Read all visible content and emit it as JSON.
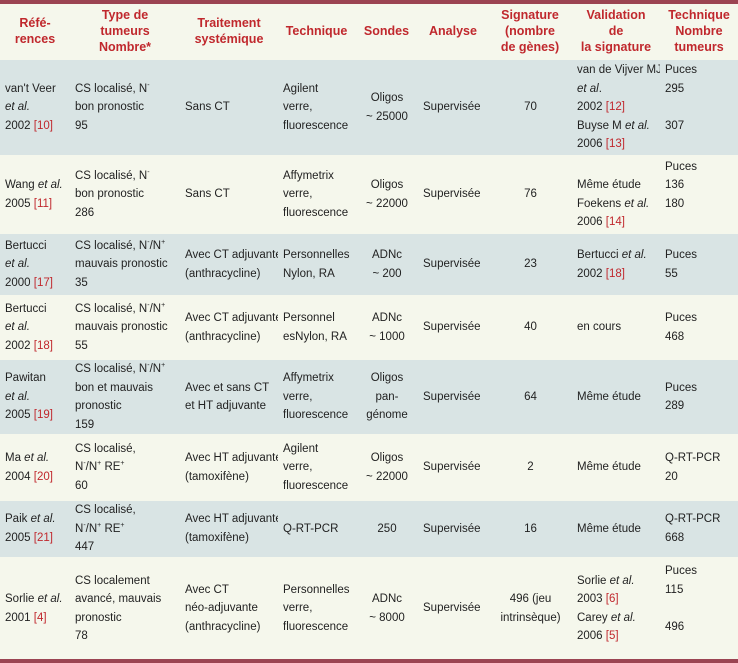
{
  "headers": [
    [
      "Réfé-",
      "rences"
    ],
    [
      "Type de",
      "tumeurs",
      "Nombre*"
    ],
    [
      "Traitement",
      "systémique"
    ],
    [
      "Technique"
    ],
    [
      "Sondes"
    ],
    [
      "Analyse"
    ],
    [
      "Signature",
      "(nombre",
      "de gènes)"
    ],
    [
      "Validation",
      "de",
      "la signature"
    ],
    [
      "Technique",
      "Nombre",
      "tumeurs"
    ]
  ],
  "rows": [
    [
      [
        [
          "van't Veer"
        ],
        [
          {
            "i": "et al."
          }
        ],
        [
          "2002 ",
          {
            "r": "[10]"
          }
        ]
      ],
      [
        [
          "CS localisé, N",
          {
            "sup": "-"
          }
        ],
        [
          "bon pronostic"
        ],
        [
          "95"
        ]
      ],
      [
        [
          "Sans CT"
        ]
      ],
      [
        [
          "Agilent"
        ],
        [
          "verre,"
        ],
        [
          "fluorescence"
        ]
      ],
      [
        [
          "Oligos"
        ],
        [
          "~ 25000"
        ]
      ],
      [
        [
          "Supervisée"
        ]
      ],
      [
        [
          "70"
        ]
      ],
      [
        [
          "van de Vijver MJ"
        ],
        [
          {
            "i": "et al"
          },
          "."
        ],
        [
          "2002 ",
          {
            "r": "[12]"
          }
        ],
        [
          "Buyse M ",
          {
            "i": "et al."
          }
        ],
        [
          "2006 ",
          {
            "r": "[13]"
          }
        ]
      ],
      [
        [
          "Puces"
        ],
        [
          "295"
        ],
        [
          ""
        ],
        [
          "307"
        ],
        [
          ""
        ]
      ]
    ],
    [
      [
        [
          "Wang ",
          {
            "i": "et al."
          }
        ],
        [
          "2005 ",
          {
            "r": "[11]"
          }
        ]
      ],
      [
        [
          "CS localisé, N",
          {
            "sup": "-"
          }
        ],
        [
          "bon pronostic"
        ],
        [
          "286"
        ]
      ],
      [
        [
          "Sans CT"
        ]
      ],
      [
        [
          "Affymetrix"
        ],
        [
          "verre,"
        ],
        [
          "fluorescence"
        ]
      ],
      [
        [
          "Oligos"
        ],
        [
          "~ 22000"
        ]
      ],
      [
        [
          "Supervisée"
        ]
      ],
      [
        [
          "76"
        ]
      ],
      [
        [
          ""
        ],
        [
          "Même étude"
        ],
        [
          "Foekens ",
          {
            "i": "et al."
          }
        ],
        [
          "2006 ",
          {
            "r": "[14]"
          }
        ]
      ],
      [
        [
          "Puces"
        ],
        [
          "136"
        ],
        [
          "180"
        ],
        [
          ""
        ]
      ]
    ],
    [
      [
        [
          "Bertucci"
        ],
        [
          {
            "i": "et al."
          }
        ],
        [
          "2000 ",
          {
            "r": "[17]"
          }
        ]
      ],
      [
        [
          "CS localisé, N",
          {
            "sup": "-"
          },
          "/N",
          {
            "sup": "+"
          }
        ],
        [
          "mauvais pronostic"
        ],
        [
          "35"
        ]
      ],
      [
        [
          "Avec CT adjuvante"
        ],
        [
          "(anthracycline)"
        ]
      ],
      [
        [
          "Personnelles"
        ],
        [
          "Nylon, RA"
        ]
      ],
      [
        [
          "ADNc"
        ],
        [
          "~ 200"
        ]
      ],
      [
        [
          "Supervisée"
        ]
      ],
      [
        [
          "23"
        ]
      ],
      [
        [
          "Bertucci ",
          {
            "i": "et al."
          }
        ],
        [
          "2002 ",
          {
            "r": "[18]"
          }
        ]
      ],
      [
        [
          "Puces"
        ],
        [
          "55"
        ]
      ]
    ],
    [
      [
        [
          "Bertucci"
        ],
        [
          {
            "i": "et al."
          }
        ],
        [
          "2002 ",
          {
            "r": "[18]"
          }
        ]
      ],
      [
        [
          "CS localisé, N",
          {
            "sup": "-"
          },
          "/N",
          {
            "sup": "+"
          }
        ],
        [
          "mauvais pronostic"
        ],
        [
          "55"
        ]
      ],
      [
        [
          "Avec CT adjuvante"
        ],
        [
          "(anthracycline)"
        ]
      ],
      [
        [
          "Personnel"
        ],
        [
          "esNylon, RA"
        ]
      ],
      [
        [
          "ADNc"
        ],
        [
          "~ 1000"
        ]
      ],
      [
        [
          "Supervisée"
        ]
      ],
      [
        [
          "40"
        ]
      ],
      [
        [
          "en cours"
        ]
      ],
      [
        [
          "Puces"
        ],
        [
          "468"
        ]
      ]
    ],
    [
      [
        [
          "Pawitan"
        ],
        [
          {
            "i": "et al."
          }
        ],
        [
          "2005 ",
          {
            "r": "[19]"
          }
        ]
      ],
      [
        [
          "CS localisé, N",
          {
            "sup": "-"
          },
          "/N",
          {
            "sup": "+"
          }
        ],
        [
          "bon et mauvais"
        ],
        [
          "pronostic"
        ],
        [
          "159"
        ]
      ],
      [
        [
          "Avec et sans CT"
        ],
        [
          "et HT adjuvante"
        ]
      ],
      [
        [
          "Affymetrix"
        ],
        [
          "verre,"
        ],
        [
          "fluorescence"
        ]
      ],
      [
        [
          "Oligos"
        ],
        [
          "pan-"
        ],
        [
          "génome"
        ]
      ],
      [
        [
          "Supervisée"
        ]
      ],
      [
        [
          "64"
        ]
      ],
      [
        [
          "Même étude"
        ]
      ],
      [
        [
          "Puces"
        ],
        [
          "289"
        ]
      ]
    ],
    [
      [
        [
          "Ma ",
          {
            "i": "et al."
          }
        ],
        [
          "2004 ",
          {
            "r": "[20]"
          }
        ]
      ],
      [
        [
          "CS localisé,"
        ],
        [
          "N",
          {
            "sup": "-"
          },
          "/N",
          {
            "sup": "+"
          },
          " RE",
          {
            "sup": "+"
          }
        ],
        [
          "60"
        ]
      ],
      [
        [
          "Avec HT adjuvante"
        ],
        [
          "(tamoxifène)"
        ]
      ],
      [
        [
          "Agilent"
        ],
        [
          "verre,"
        ],
        [
          "fluorescence"
        ]
      ],
      [
        [
          "Oligos"
        ],
        [
          "~ 22000"
        ]
      ],
      [
        [
          "Supervisée"
        ]
      ],
      [
        [
          "2"
        ]
      ],
      [
        [
          "Même étude"
        ]
      ],
      [
        [
          "Q-RT-PCR"
        ],
        [
          "20"
        ]
      ]
    ],
    [
      [
        [
          "Paik ",
          {
            "i": "et al."
          }
        ],
        [
          "2005 ",
          {
            "r": "[21]"
          }
        ]
      ],
      [
        [
          "CS localisé,"
        ],
        [
          "N",
          {
            "sup": "-"
          },
          "/N",
          {
            "sup": "+"
          },
          " RE",
          {
            "sup": "+"
          }
        ],
        [
          "447"
        ]
      ],
      [
        [
          "Avec HT adjuvante"
        ],
        [
          "(tamoxifène)"
        ]
      ],
      [
        [
          "Q-RT-PCR"
        ]
      ],
      [
        [
          "250"
        ]
      ],
      [
        [
          "Supervisée"
        ]
      ],
      [
        [
          "16"
        ]
      ],
      [
        [
          "Même étude"
        ]
      ],
      [
        [
          "Q-RT-PCR"
        ],
        [
          "668"
        ]
      ]
    ],
    [
      [
        [
          "Sorlie ",
          {
            "i": "et al."
          }
        ],
        [
          "2001 ",
          {
            "r": "[4]"
          }
        ]
      ],
      [
        [
          "CS localement"
        ],
        [
          "avancé, mauvais"
        ],
        [
          "pronostic"
        ],
        [
          "78"
        ]
      ],
      [
        [
          "Avec CT"
        ],
        [
          "néo-adjuvante"
        ],
        [
          "(anthracycline)"
        ]
      ],
      [
        [
          "Personnelles"
        ],
        [
          "verre,"
        ],
        [
          "fluorescence"
        ]
      ],
      [
        [
          "ADNc"
        ],
        [
          "~ 8000"
        ]
      ],
      [
        [
          "Supervisée"
        ]
      ],
      [
        [
          "496 (jeu"
        ],
        [
          "intrinsèque)"
        ]
      ],
      [
        [
          "Sorlie ",
          {
            "i": "et al."
          }
        ],
        [
          "2003 ",
          {
            "r": "[6]"
          }
        ],
        [
          "Carey ",
          {
            "i": "et al."
          }
        ],
        [
          "2006 ",
          {
            "r": "[5]"
          }
        ]
      ],
      [
        [
          "Puces"
        ],
        [
          "115"
        ],
        [
          ""
        ],
        [
          "496"
        ],
        [
          ""
        ]
      ]
    ]
  ]
}
